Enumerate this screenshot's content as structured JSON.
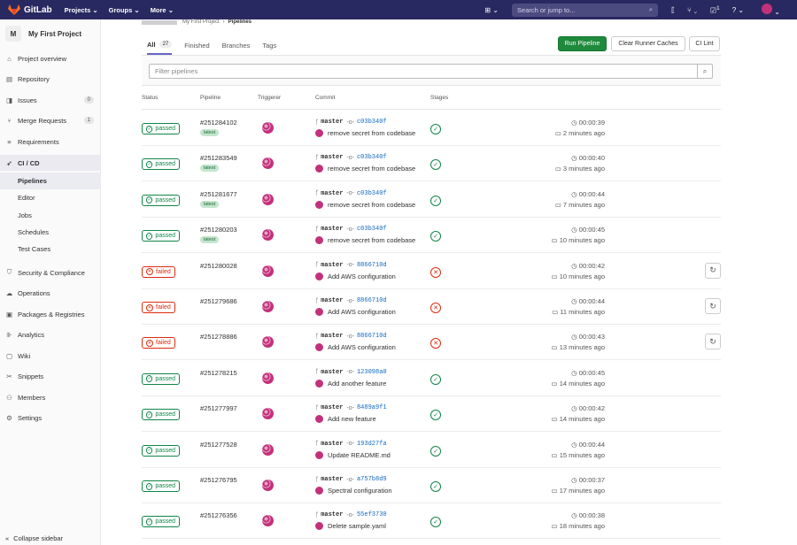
{
  "topnav": {
    "brand": "GitLab",
    "menus": [
      "Projects ⌄",
      "Groups ⌄",
      "More ⌄"
    ],
    "search_placeholder": "Search or jump to...",
    "todo_count": "1",
    "colors": {
      "bg": "#292961"
    }
  },
  "sidebar": {
    "project_letter": "M",
    "project_name": "My First Project",
    "items": [
      {
        "label": "Project overview",
        "icon": "home-icon"
      },
      {
        "label": "Repository",
        "icon": "book-icon"
      },
      {
        "label": "Issues",
        "icon": "issues-icon",
        "count": "0"
      },
      {
        "label": "Merge Requests",
        "icon": "merge-request-icon",
        "count": "1"
      },
      {
        "label": "Requirements",
        "icon": "list-icon"
      },
      {
        "label": "CI / CD",
        "icon": "rocket-icon"
      },
      {
        "label": "Security & Compliance",
        "icon": "shield-icon"
      },
      {
        "label": "Operations",
        "icon": "cloud-icon"
      },
      {
        "label": "Packages & Registries",
        "icon": "package-icon"
      },
      {
        "label": "Analytics",
        "icon": "chart-icon"
      },
      {
        "label": "Wiki",
        "icon": "wiki-icon"
      },
      {
        "label": "Snippets",
        "icon": "scissors-icon"
      },
      {
        "label": "Members",
        "icon": "users-icon"
      },
      {
        "label": "Settings",
        "icon": "gear-icon"
      }
    ],
    "cicd_sub": [
      "Pipelines",
      "Editor",
      "Jobs",
      "Schedules",
      "Test Cases"
    ],
    "collapse": "Collapse sidebar"
  },
  "breadcrumb": {
    "project": "My First Project",
    "current": "Pipelines"
  },
  "tabs": {
    "all": "All",
    "all_count": "27",
    "finished": "Finished",
    "branches": "Branches",
    "tags": "Tags"
  },
  "buttons": {
    "run": "Run Pipeline",
    "clear": "Clear Runner Caches",
    "lint": "CI Lint"
  },
  "filter_placeholder": "Filter pipelines",
  "columns": {
    "status": "Status",
    "pipeline": "Pipeline",
    "triggerer": "Triggerer",
    "commit": "Commit",
    "stages": "Stages"
  },
  "rows": [
    {
      "status": "passed",
      "id": "#251284102",
      "latest": "latest",
      "branch": "master",
      "sha": "c03b340f",
      "msg": "remove secret from codebase",
      "dur": "00:00:39",
      "ago": "2 minutes ago"
    },
    {
      "status": "passed",
      "id": "#251283549",
      "latest": "latest",
      "branch": "master",
      "sha": "c03b340f",
      "msg": "remove secret from codebase",
      "dur": "00:00:40",
      "ago": "3 minutes ago"
    },
    {
      "status": "passed",
      "id": "#251281677",
      "latest": "latest",
      "branch": "master",
      "sha": "c03b340f",
      "msg": "remove secret from codebase",
      "dur": "00:00:44",
      "ago": "7 minutes ago"
    },
    {
      "status": "passed",
      "id": "#251280203",
      "latest": "latest",
      "branch": "master",
      "sha": "c03b340f",
      "msg": "remove secret from codebase",
      "dur": "00:00:45",
      "ago": "10 minutes ago"
    },
    {
      "status": "failed",
      "id": "#251280028",
      "branch": "master",
      "sha": "8866710d",
      "msg": "Add AWS configuration",
      "dur": "00:00:42",
      "ago": "10 minutes ago"
    },
    {
      "status": "failed",
      "id": "#251279686",
      "branch": "master",
      "sha": "8866710d",
      "msg": "Add AWS configuration",
      "dur": "00:00:44",
      "ago": "11 minutes ago"
    },
    {
      "status": "failed",
      "id": "#251278886",
      "branch": "master",
      "sha": "8866710d",
      "msg": "Add AWS configuration",
      "dur": "00:00:43",
      "ago": "13 minutes ago"
    },
    {
      "status": "passed",
      "id": "#251278215",
      "branch": "master",
      "sha": "123098a0",
      "msg": "Add another feature",
      "dur": "00:00:45",
      "ago": "14 minutes ago"
    },
    {
      "status": "passed",
      "id": "#251277997",
      "branch": "master",
      "sha": "8489a9f1",
      "msg": "Add new feature",
      "dur": "00:00:42",
      "ago": "14 minutes ago"
    },
    {
      "status": "passed",
      "id": "#251277528",
      "branch": "master",
      "sha": "193d27fa",
      "msg": "Update README.md",
      "dur": "00:00:44",
      "ago": "15 minutes ago"
    },
    {
      "status": "passed",
      "id": "#251276795",
      "branch": "master",
      "sha": "a757b8d9",
      "msg": "Spectral configuration",
      "dur": "00:00:37",
      "ago": "17 minutes ago"
    },
    {
      "status": "passed",
      "id": "#251276356",
      "branch": "master",
      "sha": "55ef3730",
      "msg": "Delete sample.yaml",
      "dur": "00:00:38",
      "ago": "18 minutes ago"
    }
  ]
}
